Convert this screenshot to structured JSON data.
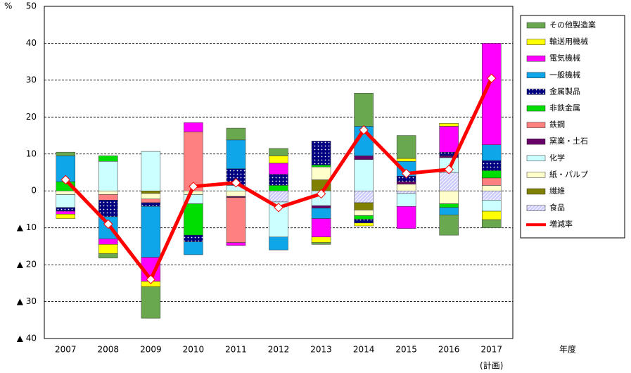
{
  "chart_data": {
    "type": "bar",
    "stacked": true,
    "y_label": "%",
    "x_label": "年度",
    "annotation": "(計画)",
    "categories": [
      "2007",
      "2008",
      "2009",
      "2010",
      "2011",
      "2012",
      "2013",
      "2014",
      "2015",
      "2016",
      "2017"
    ],
    "ylim": [
      -40,
      50
    ],
    "yticks": [
      50,
      40,
      30,
      20,
      10,
      0,
      {
        "value": -10,
        "label": "▲ 10"
      },
      {
        "value": -20,
        "label": "▲ 20"
      },
      {
        "value": -30,
        "label": "▲ 30"
      },
      {
        "value": -40,
        "label": "▲ 40"
      }
    ],
    "grid": true,
    "legend": "right",
    "series": [
      {
        "name": "食品",
        "color": "#ccccff",
        "pattern": "hatch",
        "values": [
          0,
          0,
          0,
          0,
          0,
          -3,
          0,
          -3.2,
          -0.7,
          5,
          -2.5
        ]
      },
      {
        "name": "繊維",
        "color": "#808000",
        "values": [
          0,
          0,
          -0.7,
          0,
          0,
          0,
          3,
          -2,
          0,
          0,
          0
        ]
      },
      {
        "name": "紙・パルプ",
        "color": "#ffffcc",
        "values": [
          -1,
          -1,
          -1.5,
          -1,
          -1.5,
          0,
          3.5,
          -1.5,
          1.8,
          -3.5,
          1.5
        ]
      },
      {
        "name": "化学",
        "color": "#ccffff",
        "values": [
          -3.5,
          8,
          10.7,
          -2.5,
          1.5,
          -9.5,
          -4,
          8.5,
          -3.5,
          4,
          -3
        ]
      },
      {
        "name": "窯業・土石",
        "color": "#660066",
        "values": [
          0,
          0,
          0,
          0,
          -0.3,
          0,
          -0.7,
          1,
          0.7,
          0.5,
          0
        ]
      },
      {
        "name": "鉄鋼",
        "color": "#ff8080",
        "values": [
          0,
          -1.5,
          -1,
          16,
          -12.2,
          0,
          0,
          0,
          0,
          0,
          2
        ]
      },
      {
        "name": "非鉄金属",
        "color": "#00dd00",
        "values": [
          2.5,
          1.5,
          0,
          -8.5,
          0,
          1.5,
          0.5,
          -1,
          0,
          -1,
          2
        ]
      },
      {
        "name": "金属製品",
        "color": "#000080",
        "pattern": "dots",
        "values": [
          -1,
          -4.5,
          -1,
          -1.8,
          4.5,
          3,
          6.5,
          -1,
          1.5,
          1,
          2.7
        ]
      },
      {
        "name": "一般機械",
        "color": "#0ea5e9",
        "values": [
          7,
          -6,
          -13.8,
          -3.5,
          7.8,
          -3.5,
          -2.8,
          8,
          4,
          -2,
          4.3
        ]
      },
      {
        "name": "電気機械",
        "color": "#ff00ff",
        "values": [
          -0.8,
          -1.5,
          -6.5,
          2.5,
          -0.8,
          3,
          -5,
          0,
          -6,
          7,
          27.5
        ]
      },
      {
        "name": "輸送用機械",
        "color": "#ffff00",
        "values": [
          -1.2,
          -2.5,
          -1.5,
          0,
          0,
          2,
          -1.5,
          -0.8,
          0.8,
          0.8,
          -2.3
        ]
      },
      {
        "name": "その他製造業",
        "color": "#6aa84f",
        "values": [
          1,
          -1.2,
          -8.5,
          0,
          3.2,
          2,
          -0.5,
          9,
          6.2,
          -5.5,
          -2.2
        ]
      },
      {
        "name": "増減率",
        "type": "line",
        "color": "#ff0000",
        "values": [
          3,
          -9,
          -24,
          1.2,
          2.2,
          -4.5,
          -0.8,
          16.5,
          4.7,
          5.8,
          30.5
        ]
      }
    ]
  }
}
